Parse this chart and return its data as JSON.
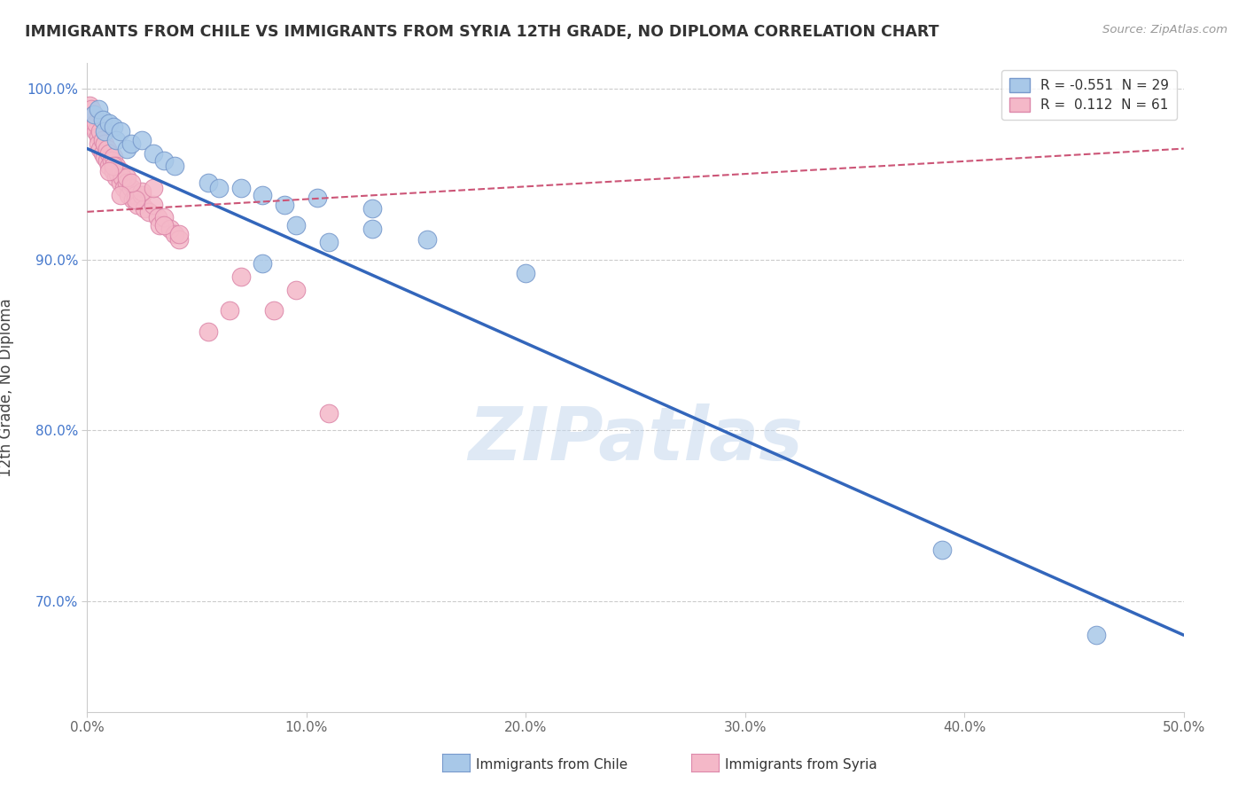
{
  "title": "IMMIGRANTS FROM CHILE VS IMMIGRANTS FROM SYRIA 12TH GRADE, NO DIPLOMA CORRELATION CHART",
  "source": "Source: ZipAtlas.com",
  "ylabel": "12th Grade, No Diploma",
  "xlim": [
    0.0,
    0.5
  ],
  "ylim": [
    0.635,
    1.015
  ],
  "xticks": [
    0.0,
    0.1,
    0.2,
    0.3,
    0.4,
    0.5
  ],
  "xtick_labels": [
    "0.0%",
    "10.0%",
    "20.0%",
    "30.0%",
    "40.0%",
    "50.0%"
  ],
  "yticks": [
    0.7,
    0.8,
    0.9,
    1.0
  ],
  "ytick_labels": [
    "70.0%",
    "80.0%",
    "90.0%",
    "100.0%"
  ],
  "grid_color": "#cccccc",
  "watermark": "ZIPatlas",
  "chile_color": "#a8c8e8",
  "chile_edge": "#7799cc",
  "syria_color": "#f4b8c8",
  "syria_edge": "#dd88aa",
  "chile_R": -0.551,
  "chile_N": 29,
  "syria_R": 0.112,
  "syria_N": 61,
  "chile_line_color": "#3366bb",
  "syria_line_color": "#cc5577",
  "background_color": "#ffffff",
  "chile_scatter_x": [
    0.003,
    0.005,
    0.007,
    0.008,
    0.01,
    0.012,
    0.013,
    0.015,
    0.018,
    0.02,
    0.025,
    0.03,
    0.035,
    0.04,
    0.055,
    0.06,
    0.07,
    0.08,
    0.09,
    0.105,
    0.13,
    0.155,
    0.08,
    0.095,
    0.11,
    0.2,
    0.13,
    0.39,
    0.46
  ],
  "chile_scatter_y": [
    0.985,
    0.988,
    0.982,
    0.975,
    0.98,
    0.978,
    0.97,
    0.975,
    0.965,
    0.968,
    0.97,
    0.962,
    0.958,
    0.955,
    0.945,
    0.942,
    0.942,
    0.938,
    0.932,
    0.936,
    0.918,
    0.912,
    0.898,
    0.92,
    0.91,
    0.892,
    0.93,
    0.73,
    0.68
  ],
  "syria_scatter_x": [
    0.001,
    0.002,
    0.002,
    0.003,
    0.003,
    0.004,
    0.004,
    0.005,
    0.005,
    0.006,
    0.006,
    0.007,
    0.007,
    0.008,
    0.008,
    0.009,
    0.009,
    0.01,
    0.01,
    0.011,
    0.012,
    0.012,
    0.013,
    0.013,
    0.014,
    0.015,
    0.015,
    0.016,
    0.017,
    0.018,
    0.019,
    0.02,
    0.021,
    0.022,
    0.023,
    0.025,
    0.026,
    0.028,
    0.03,
    0.032,
    0.033,
    0.035,
    0.038,
    0.04,
    0.042,
    0.025,
    0.018,
    0.022,
    0.03,
    0.012,
    0.02,
    0.015,
    0.01,
    0.07,
    0.085,
    0.095,
    0.11,
    0.035,
    0.042,
    0.055,
    0.065
  ],
  "syria_scatter_y": [
    0.99,
    0.988,
    0.982,
    0.985,
    0.978,
    0.975,
    0.98,
    0.972,
    0.968,
    0.975,
    0.965,
    0.97,
    0.962,
    0.968,
    0.96,
    0.965,
    0.958,
    0.962,
    0.955,
    0.958,
    0.96,
    0.952,
    0.948,
    0.955,
    0.95,
    0.952,
    0.945,
    0.948,
    0.942,
    0.945,
    0.938,
    0.942,
    0.935,
    0.938,
    0.932,
    0.938,
    0.93,
    0.928,
    0.932,
    0.925,
    0.92,
    0.925,
    0.918,
    0.915,
    0.912,
    0.94,
    0.948,
    0.935,
    0.942,
    0.955,
    0.945,
    0.938,
    0.952,
    0.89,
    0.87,
    0.882,
    0.81,
    0.92,
    0.915,
    0.858,
    0.87
  ]
}
